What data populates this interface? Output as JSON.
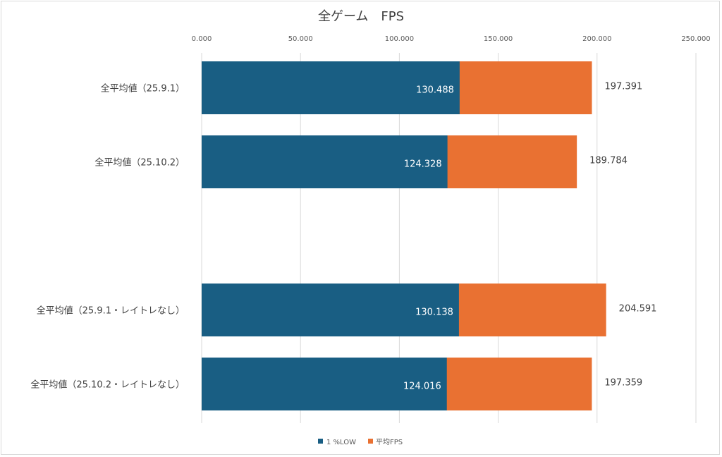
{
  "chart_data": {
    "type": "bar",
    "orientation": "horizontal",
    "title": "全ゲーム　FPS",
    "categories": [
      "全平均値（25.9.1）",
      "全平均値（25.10.2）",
      "",
      "全平均値（25.9.1・レイトレなし）",
      "全平均値（25.10.2・レイトレなし）"
    ],
    "series": [
      {
        "name": "1 %LOW",
        "color": "#195e83",
        "values": [
          130.488,
          124.328,
          null,
          130.138,
          124.016
        ],
        "value_labels": [
          "130.488",
          "124.328",
          "",
          "130.138",
          "124.016"
        ]
      },
      {
        "name": "平均FPS",
        "color": "#e97132",
        "values": [
          197.391,
          189.784,
          null,
          204.591,
          197.359
        ],
        "value_labels": [
          "197.391",
          "189.784",
          "",
          "204.591",
          "197.359"
        ]
      }
    ],
    "xlim": [
      0,
      250
    ],
    "xticks": [
      0,
      50,
      100,
      150,
      200,
      250
    ],
    "xtick_labels": [
      "0.000",
      "50.000",
      "100.000",
      "150.000",
      "200.000",
      "250.000"
    ],
    "axis_position": "top",
    "grid": true,
    "legend": "bottom",
    "xlabel": "",
    "ylabel": ""
  }
}
